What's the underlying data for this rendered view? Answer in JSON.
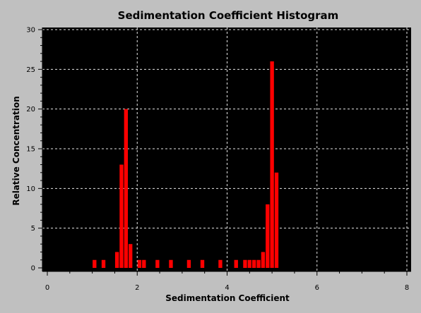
{
  "chart_data": {
    "type": "bar",
    "title": "Sedimentation Coefficient Histogram",
    "xlabel": "Sedimentation Coefficient",
    "ylabel": "Relative Concentration",
    "xlim": [
      0,
      8
    ],
    "ylim": [
      0,
      30
    ],
    "xticks": [
      "0",
      "2",
      "4",
      "6",
      "8"
    ],
    "yticks": [
      "0",
      "5",
      "10",
      "15",
      "20",
      "25",
      "30"
    ],
    "grid": true,
    "background": "#000000",
    "bar_color": "#ff0000",
    "bin_width": 0.1,
    "x": [
      1.05,
      1.25,
      1.55,
      1.65,
      1.75,
      1.85,
      2.05,
      2.15,
      2.45,
      2.75,
      3.15,
      3.45,
      3.85,
      4.2,
      4.4,
      4.5,
      4.6,
      4.7,
      4.8,
      4.9,
      5.0,
      5.1
    ],
    "values": [
      1,
      1,
      2,
      13,
      20,
      3,
      1,
      1,
      1,
      1,
      1,
      1,
      1,
      1,
      1,
      1,
      1,
      1,
      2,
      8,
      26,
      12
    ]
  }
}
